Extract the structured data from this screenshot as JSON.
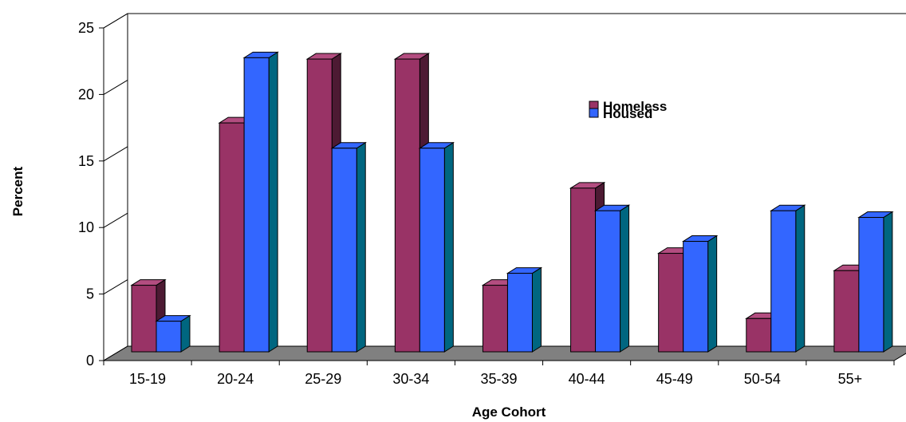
{
  "chart_data": {
    "type": "bar",
    "categories": [
      "15-19",
      "20-24",
      "25-29",
      "30-34",
      "35-39",
      "40-44",
      "45-49",
      "50-54",
      "55+"
    ],
    "series": [
      {
        "name": "Homeless",
        "values": [
          5,
          17.2,
          22,
          22,
          5,
          12.3,
          7.4,
          2.5,
          6.1
        ],
        "color": "#993366",
        "side_color": "#4d1a33",
        "top_color": "#b34d80"
      },
      {
        "name": "Housed",
        "values": [
          2.3,
          22.1,
          15.3,
          15.3,
          5.9,
          10.6,
          8.3,
          10.6,
          10.1
        ],
        "color": "#3366ff",
        "side_color": "#006680",
        "top_color": "#3366ff"
      }
    ],
    "xlabel": "Age Cohort",
    "ylabel": "Percent",
    "ylim": [
      0,
      25
    ],
    "yticks": [
      0,
      5,
      10,
      15,
      20,
      25
    ],
    "grid": false,
    "legend_position": "top-right",
    "floor_color": "#808080",
    "chart_type_detail": "3D clustered column"
  }
}
